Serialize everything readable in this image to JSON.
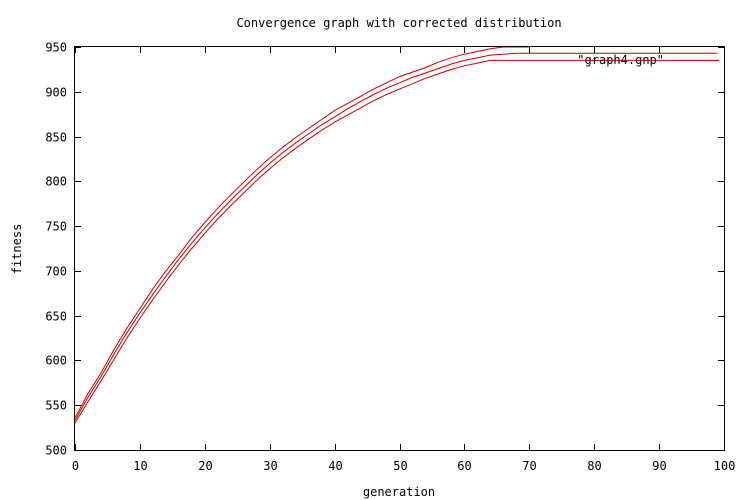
{
  "chart_data": {
    "type": "line",
    "title": "Convergence graph with corrected distribution",
    "xlabel": "generation",
    "ylabel": "fitness",
    "xlim": [
      0,
      100
    ],
    "ylim": [
      500,
      950
    ],
    "xticks": [
      0,
      10,
      20,
      30,
      40,
      50,
      60,
      70,
      80,
      90,
      100
    ],
    "yticks": [
      500,
      550,
      600,
      650,
      700,
      750,
      800,
      850,
      900,
      950
    ],
    "grid": false,
    "legend_placement": "top-right",
    "legend": [
      {
        "label": "\"graph4.gnp\"",
        "color": "#cc0000"
      }
    ],
    "line_color": "#cc0000",
    "series": [
      {
        "x": [
          0,
          2,
          4,
          6,
          8,
          10,
          12,
          14,
          16,
          18,
          20,
          22,
          24,
          26,
          28,
          30,
          32,
          34,
          36,
          38,
          40,
          42,
          44,
          46,
          48,
          50,
          52,
          54,
          56,
          58,
          60,
          62,
          64,
          66,
          68,
          70
        ],
        "y": [
          536,
          563,
          586,
          612,
          636,
          658,
          680,
          700,
          718,
          737,
          754,
          770,
          785,
          799,
          813,
          826,
          838,
          849,
          859,
          869,
          879,
          887,
          895,
          903,
          910,
          917,
          922,
          927,
          933,
          938,
          942,
          945,
          948,
          950,
          950,
          950
        ]
      },
      {
        "x": [
          0,
          2,
          4,
          6,
          8,
          10,
          12,
          14,
          16,
          18,
          20,
          22,
          24,
          26,
          28,
          30,
          32,
          34,
          36,
          38,
          40,
          42,
          44,
          46,
          48,
          50,
          52,
          54,
          56,
          58,
          60,
          62,
          64,
          66,
          68,
          70,
          99
        ],
        "y": [
          533,
          559,
          582,
          607,
          631,
          653,
          674,
          694,
          713,
          731,
          748,
          764,
          779,
          793,
          807,
          820,
          832,
          843,
          853,
          863,
          872,
          881,
          889,
          897,
          904,
          910,
          916,
          921,
          926,
          931,
          935,
          938,
          941,
          942,
          943,
          943,
          943
        ]
      },
      {
        "x": [
          0,
          2,
          4,
          6,
          8,
          10,
          12,
          14,
          16,
          18,
          20,
          22,
          24,
          26,
          28,
          30,
          32,
          34,
          36,
          38,
          40,
          42,
          44,
          46,
          48,
          50,
          52,
          54,
          56,
          58,
          60,
          62,
          64,
          99
        ],
        "y": [
          530,
          554,
          577,
          601,
          625,
          647,
          668,
          688,
          707,
          725,
          742,
          758,
          773,
          787,
          801,
          814,
          826,
          837,
          847,
          857,
          866,
          874,
          882,
          890,
          897,
          903,
          909,
          915,
          920,
          925,
          929,
          932,
          935,
          935
        ]
      }
    ]
  }
}
